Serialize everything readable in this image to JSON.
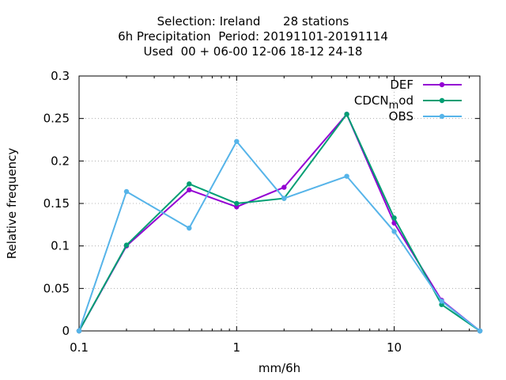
{
  "chart_data": {
    "type": "line",
    "title_lines": [
      "Selection: Ireland      28 stations",
      "6h Precipitation  Period: 20191101-20191114",
      "Used  00 + 06-00 12-06 18-12 24-18"
    ],
    "xlabel": "mm/6h",
    "ylabel": "Relative frequency",
    "x_scale": "log",
    "xlim": [
      0.1,
      35
    ],
    "ylim": [
      0,
      0.3
    ],
    "x_ticks": [
      0.1,
      1,
      10
    ],
    "x_tick_labels": [
      "0.1",
      "1",
      "10"
    ],
    "y_ticks": [
      0,
      0.05,
      0.1,
      0.15,
      0.2,
      0.25,
      0.3
    ],
    "y_tick_labels": [
      "0",
      "0.05",
      "0.1",
      "0.15",
      "0.2",
      "0.25",
      "0.3"
    ],
    "grid": true,
    "legend_position": "top-right",
    "x": [
      0.1,
      0.2,
      0.5,
      1,
      2,
      5,
      10,
      20,
      35
    ],
    "series": [
      {
        "name": "DEF",
        "color": "#9400d3",
        "values": [
          0,
          0.1,
          0.166,
          0.146,
          0.169,
          0.255,
          0.127,
          0.036,
          0
        ]
      },
      {
        "name": "CDCN_mod",
        "color": "#009e73",
        "values": [
          0,
          0.101,
          0.173,
          0.15,
          0.156,
          0.255,
          0.133,
          0.031,
          0
        ]
      },
      {
        "name": "OBS",
        "color": "#56b4e9",
        "values": [
          0,
          0.164,
          0.121,
          0.223,
          0.156,
          0.182,
          0.117,
          0.035,
          0
        ]
      }
    ]
  }
}
